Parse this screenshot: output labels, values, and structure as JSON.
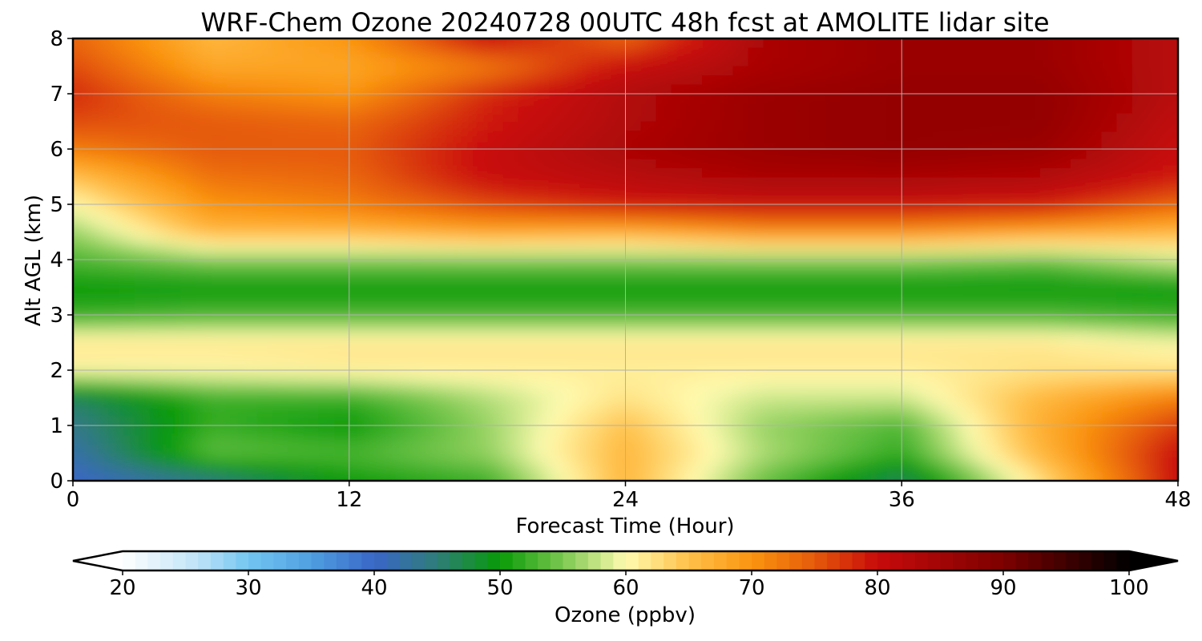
{
  "chart_data": {
    "type": "heatmap",
    "title": "WRF-Chem Ozone  20240728 00UTC 48h fcst at AMOLITE lidar site",
    "xlabel": "Forecast Time (Hour)",
    "ylabel": "Alt AGL (km)",
    "xlim": [
      0,
      48
    ],
    "ylim": [
      0,
      8
    ],
    "x_ticks": [
      0,
      12,
      24,
      36,
      48
    ],
    "y_ticks": [
      0,
      1,
      2,
      3,
      4,
      5,
      6,
      7,
      8
    ],
    "grid": true,
    "x_hours": [
      0,
      6,
      12,
      18,
      24,
      30,
      36,
      42,
      48
    ],
    "y_km": [
      0,
      0.5,
      1,
      1.5,
      2,
      2.5,
      3,
      3.5,
      4,
      4.5,
      5,
      5.5,
      6,
      6.5,
      7,
      7.5,
      8
    ],
    "ozone_ppbv": [
      [
        40,
        44,
        50,
        52,
        66,
        54,
        46,
        62,
        80
      ],
      [
        42,
        54,
        53,
        56,
        66,
        57,
        52,
        66,
        80
      ],
      [
        44,
        52,
        50,
        56,
        65,
        56,
        53,
        67,
        77
      ],
      [
        46,
        52,
        52,
        57,
        62,
        58,
        58,
        66,
        72
      ],
      [
        60,
        60,
        61,
        61,
        61,
        61,
        61,
        62,
        62
      ],
      [
        62,
        62,
        62,
        62,
        62,
        62,
        62,
        62,
        60
      ],
      [
        52,
        53,
        53,
        53,
        53,
        53,
        53,
        53,
        52
      ],
      [
        50,
        50,
        50,
        50,
        50,
        50,
        50,
        50,
        50
      ],
      [
        53,
        55,
        55,
        55,
        55,
        55,
        55,
        54,
        58
      ],
      [
        56,
        66,
        66,
        68,
        67,
        70,
        70,
        68,
        66
      ],
      [
        60,
        70,
        72,
        76,
        79,
        80,
        80,
        79,
        74
      ],
      [
        65,
        73,
        74,
        80,
        82,
        84,
        84,
        83,
        79
      ],
      [
        72,
        75,
        75,
        80,
        84,
        86,
        87,
        86,
        80
      ],
      [
        76,
        75,
        74,
        79,
        83,
        86,
        87,
        87,
        81
      ],
      [
        78,
        72,
        70,
        78,
        83,
        86,
        87,
        87,
        82
      ],
      [
        76,
        68,
        68,
        72,
        80,
        84,
        86,
        86,
        82
      ],
      [
        74,
        66,
        70,
        80,
        74,
        84,
        86,
        86,
        82
      ]
    ],
    "colorbar": {
      "label": "Ozone  (ppbv)",
      "range": [
        20,
        100
      ],
      "ticks": [
        "20",
        "30",
        "40",
        "50",
        "60",
        "70",
        "80",
        "90",
        "100"
      ],
      "extend": "both"
    }
  }
}
